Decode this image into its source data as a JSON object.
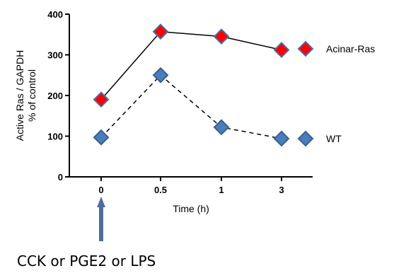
{
  "chart_data": {
    "type": "line",
    "categories": [
      "0",
      "0.5",
      "1",
      "3"
    ],
    "xlabel": "Time (h)",
    "ylabel_lines": [
      "Active Ras / GAPDH",
      "% of control"
    ],
    "ylim": [
      0,
      400
    ],
    "yticks": [
      "0",
      "100",
      "200",
      "300",
      "400"
    ],
    "grid": false,
    "series": [
      {
        "name": "Acinar-Ras",
        "values": [
          190,
          357,
          345,
          312
        ],
        "line_style": "solid",
        "marker_fill": "#ff0000",
        "marker_stroke": "#4a6fa5"
      },
      {
        "name": "WT",
        "values": [
          97,
          250,
          122,
          94
        ],
        "line_style": "dashed",
        "marker_fill": "#4a7ebb",
        "marker_stroke": "#3a5f8f"
      }
    ],
    "legend_placement": "right",
    "annotation": {
      "text": "CCK or PGE2 or LPS",
      "arrow_at_category": "0",
      "arrow_color": "#4f6d9c",
      "icon": "arrow-up-icon"
    }
  }
}
